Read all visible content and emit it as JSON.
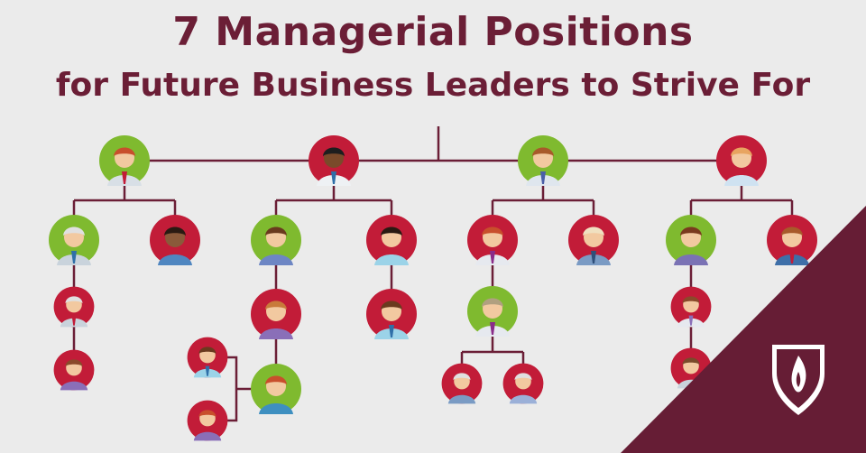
{
  "header": {
    "title": "7 Managerial Positions",
    "subtitle": "for Future Business Leaders to Strive For"
  },
  "colors": {
    "title": "#6b1e36",
    "line": "#6b1e36",
    "green_circle": "#7fba2f",
    "red_circle": "#c21c38",
    "corner": "#661d35",
    "background": "#ebebeb"
  },
  "icons": {
    "people": "person-avatar-icon",
    "logo": "shield-flame-logo-icon"
  }
}
